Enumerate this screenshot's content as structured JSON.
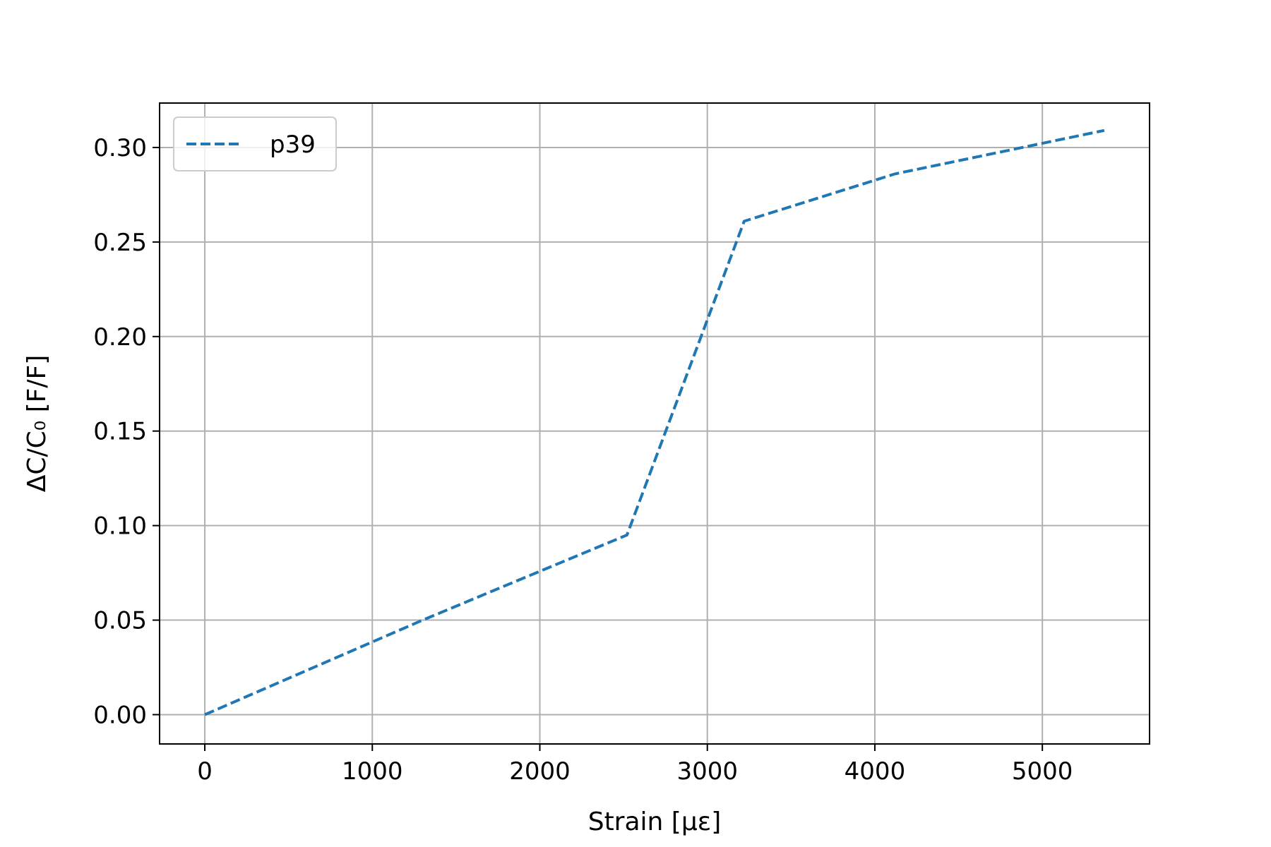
{
  "chart_data": {
    "type": "line",
    "title": "",
    "xlabel": "Strain [με]",
    "ylabel": "ΔC/C₀ [F/F]",
    "xlim": [
      -270,
      5640
    ],
    "ylim": [
      -0.0155,
      0.3235
    ],
    "xticks": [
      0,
      1000,
      2000,
      3000,
      4000,
      5000
    ],
    "xtick_labels": [
      "0",
      "1000",
      "2000",
      "3000",
      "4000",
      "5000"
    ],
    "yticks": [
      0.0,
      0.05,
      0.1,
      0.15,
      0.2,
      0.25,
      0.3
    ],
    "ytick_labels": [
      "0.00",
      "0.05",
      "0.10",
      "0.15",
      "0.20",
      "0.25",
      "0.30"
    ],
    "grid": true,
    "legend_position": "top-left",
    "series": [
      {
        "name": "p39",
        "color": "#1f77b4",
        "line_style": "dashed",
        "x": [
          0,
          1300,
          2520,
          3220,
          4120,
          5370
        ],
        "y": [
          0.0,
          0.05,
          0.095,
          0.261,
          0.286,
          0.309
        ]
      }
    ]
  }
}
